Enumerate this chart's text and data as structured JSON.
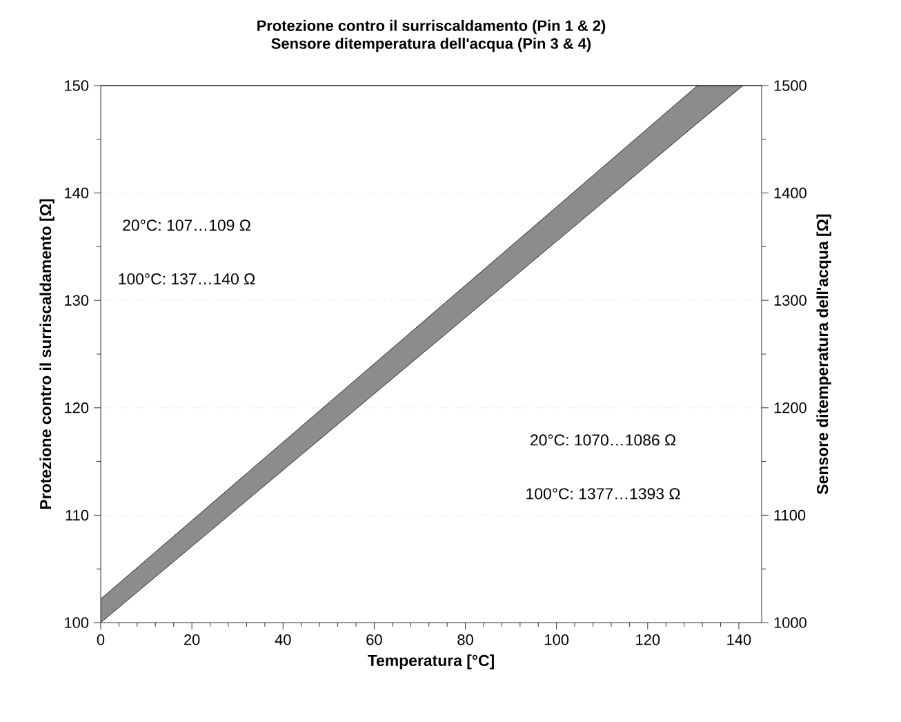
{
  "chart_data": {
    "type": "line",
    "title": "Protezione contro il surriscaldamento  (Pin 1 & 2)",
    "subtitle": "Sensore ditemperatura dell'acqua  (Pin 3 & 4)",
    "xlabel": "Temperatura  [°C]",
    "ylabel": "Protezione contro il surriscaldamento  [Ω]",
    "y2label": "Sensore ditemperatura dell'acqua  [Ω]",
    "series": [
      {
        "color": "#8c8c8d",
        "x": [
          0,
          100,
          130.9,
          140.9
        ],
        "values": [
          null,
          null,
          null,
          null
        ],
        "lower": [
          100,
          135.5,
          146.5,
          150
        ],
        "upper": [
          102.2,
          138.7,
          150,
          150
        ]
      }
    ],
    "xlim": [
      0,
      145
    ],
    "xticks": [
      0,
      20,
      40,
      60,
      80,
      100,
      120,
      140
    ],
    "ylim": [
      100,
      150
    ],
    "yticks": [
      100,
      110,
      120,
      130,
      140,
      150
    ],
    "y2lim": [
      1000,
      1500
    ],
    "y2ticks": [
      1000,
      1100,
      1200,
      1300,
      1400,
      1500
    ],
    "grid": "y",
    "annotations": [
      "20°C: 107…109 Ω",
      "100°C: 137…140 Ω",
      "20°C: 1070…1086 Ω",
      "100°C: 1377…1393 Ω"
    ]
  }
}
